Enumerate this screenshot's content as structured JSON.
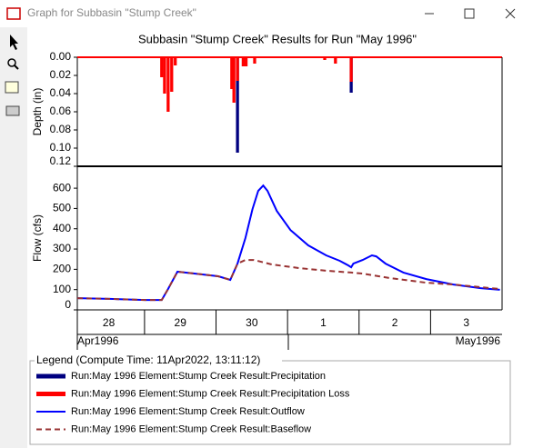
{
  "window": {
    "title": "Graph for Subbasin \"Stump Creek\""
  },
  "title": "Subbasin \"Stump Creek\" Results for Run \"May 1996\"",
  "chart_data": [
    {
      "type": "bar",
      "ylabel": "Depth (in)",
      "y_inverted": true,
      "xlim": [
        0.06,
        6
      ],
      "ylim": [
        0,
        0.12
      ],
      "yticks": [
        {
          "value": 0,
          "label": "0.00"
        },
        0.02,
        0.04,
        0.06,
        0.08,
        {
          "value": 0.1,
          "label": "0.10"
        },
        0.12
      ],
      "series": [
        {
          "name": "Run:May 1996 Element:Stump Creek Result:Precipitation",
          "color": "#000080",
          "x": [
            2.3,
            3.89
          ],
          "values": [
            0.105,
            0.039
          ]
        },
        {
          "name": "Run:May 1996 Element:Stump Creek Result:Precipitation Loss",
          "color": "#ff0000",
          "x": [
            1.24,
            1.28,
            1.33,
            1.38,
            1.43,
            2.22,
            2.25,
            2.3,
            2.38,
            2.42,
            2.54,
            3.52,
            3.67,
            3.89
          ],
          "values": [
            0.022,
            0.04,
            0.06,
            0.038,
            0.009,
            0.035,
            0.05,
            0.026,
            0.01,
            0.01,
            0.007,
            0.003,
            0.007,
            0.027
          ]
        }
      ]
    },
    {
      "type": "line",
      "ylabel": "Flow (cfs)",
      "xlim": [
        0.06,
        6
      ],
      "ylim": [
        0,
        708
      ],
      "yticks": [
        0,
        100,
        200,
        300,
        400,
        500,
        600
      ],
      "xticks": [
        {
          "value": 0.5,
          "label": "28"
        },
        {
          "value": 1.5,
          "label": "29"
        },
        {
          "value": 2.5,
          "label": "30"
        },
        {
          "value": 3.5,
          "label": "1"
        },
        {
          "value": 4.5,
          "label": "2"
        },
        {
          "value": 5.5,
          "label": "3"
        }
      ],
      "month_labels": [
        "Apr1996",
        "May1996"
      ],
      "series": [
        {
          "name": "Run:May 1996 Element:Stump Creek Result:Outflow",
          "color": "#0000ff",
          "dashed": false,
          "x": [
            0.06,
            0.51,
            1.01,
            1.24,
            1.33,
            1.46,
            1.71,
            2.03,
            2.2,
            2.3,
            2.41,
            2.51,
            2.59,
            2.66,
            2.72,
            2.85,
            3.04,
            3.29,
            3.54,
            3.73,
            3.85,
            3.89,
            3.92,
            4.05,
            4.18,
            4.24,
            4.37,
            4.62,
            4.94,
            5.32,
            5.7,
            5.97
          ],
          "values": [
            58,
            54,
            49,
            49,
            103,
            188,
            179,
            166,
            148,
            228,
            354,
            497,
            587,
            613,
            587,
            488,
            394,
            318,
            269,
            242,
            219,
            210,
            228,
            246,
            269,
            264,
            228,
            184,
            152,
            125,
            107,
            99
          ]
        },
        {
          "name": "Run:May 1996 Element:Stump Creek Result:Baseflow",
          "color": "#993333",
          "dashed": true,
          "x": [
            0.06,
            0.51,
            1.01,
            1.24,
            1.33,
            1.46,
            1.71,
            2.03,
            2.2,
            2.3,
            2.41,
            2.53,
            2.78,
            3.16,
            3.54,
            3.89,
            4.05,
            4.43,
            4.94,
            5.32,
            5.7,
            5.97
          ],
          "values": [
            58,
            54,
            49,
            49,
            103,
            188,
            179,
            166,
            148,
            228,
            246,
            246,
            224,
            206,
            193,
            184,
            179,
            157,
            134,
            125,
            112,
            103
          ]
        }
      ]
    }
  ],
  "legend": {
    "title": "Legend (Compute Time: 11Apr2022, 13:11:12)"
  }
}
